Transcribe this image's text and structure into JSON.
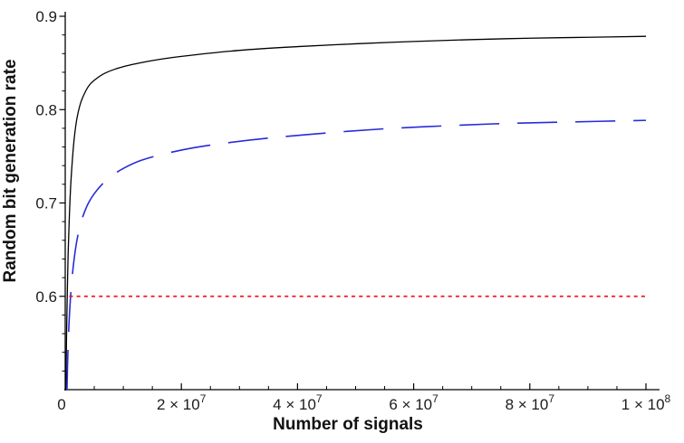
{
  "figure": {
    "background": "#ffffff",
    "origin_label": "0",
    "x_axis": {
      "title": "Number of signals",
      "major_ticks": [
        {
          "value": 20000000,
          "base": "2 × 10",
          "exponent": "7"
        },
        {
          "value": 40000000,
          "base": "4 × 10",
          "exponent": "7"
        },
        {
          "value": 60000000,
          "base": "6 × 10",
          "exponent": "7"
        },
        {
          "value": 80000000,
          "base": "8 × 10",
          "exponent": "7"
        },
        {
          "value": 100000000,
          "base": "1 × 10",
          "exponent": "8"
        }
      ],
      "minor_tick_step": 5000000
    },
    "y_axis": {
      "title": "Random bit generation rate",
      "major_ticks": [
        {
          "value": 0.6,
          "label": "0.6"
        },
        {
          "value": 0.7,
          "label": "0.7"
        },
        {
          "value": 0.8,
          "label": "0.8"
        },
        {
          "value": 0.9,
          "label": "0.9"
        }
      ],
      "minor_tick_step": 0.02
    },
    "axis_color": "#000000"
  },
  "chart_data": {
    "type": "line",
    "title": "",
    "xlabel": "Number of signals",
    "ylabel": "Random bit generation rate",
    "xlim": [
      0,
      100000000
    ],
    "ylim": [
      0.5,
      0.9
    ],
    "grid": false,
    "legend": "none",
    "series": [
      {
        "name": "black-solid-curve",
        "style": "solid",
        "color": "#000000",
        "width": 1.3,
        "points": [
          [
            120000,
            0.5
          ],
          [
            180000,
            0.535
          ],
          [
            260000,
            0.57
          ],
          [
            360000,
            0.605
          ],
          [
            500000,
            0.645
          ],
          [
            650000,
            0.675
          ],
          [
            800000,
            0.7
          ],
          [
            1000000,
            0.725
          ],
          [
            1300000,
            0.752
          ],
          [
            1600000,
            0.772
          ],
          [
            2000000,
            0.79
          ],
          [
            2500000,
            0.804
          ],
          [
            3000000,
            0.813
          ],
          [
            4000000,
            0.825
          ],
          [
            5000000,
            0.8315
          ],
          [
            7000000,
            0.8395
          ],
          [
            10000000,
            0.846
          ],
          [
            15000000,
            0.8525
          ],
          [
            20000000,
            0.857
          ],
          [
            30000000,
            0.8635
          ],
          [
            40000000,
            0.8675
          ],
          [
            50000000,
            0.8705
          ],
          [
            60000000,
            0.873
          ],
          [
            70000000,
            0.875
          ],
          [
            80000000,
            0.8765
          ],
          [
            90000000,
            0.8775
          ],
          [
            100000000,
            0.8785
          ]
        ]
      },
      {
        "name": "blue-long-dashed-curve",
        "style": "dashed",
        "color": "#2a2ad8",
        "width": 1.6,
        "dash": "44 20",
        "points": [
          [
            300000,
            0.5
          ],
          [
            400000,
            0.527
          ],
          [
            550000,
            0.555
          ],
          [
            700000,
            0.577
          ],
          [
            900000,
            0.598
          ],
          [
            1100000,
            0.614
          ],
          [
            1400000,
            0.633
          ],
          [
            1800000,
            0.652
          ],
          [
            2200000,
            0.666
          ],
          [
            2700000,
            0.679
          ],
          [
            3300000,
            0.69
          ],
          [
            4000000,
            0.7
          ],
          [
            5000000,
            0.71
          ],
          [
            6500000,
            0.721
          ],
          [
            8000000,
            0.729
          ],
          [
            10000000,
            0.737
          ],
          [
            13000000,
            0.7455
          ],
          [
            17000000,
            0.7525
          ],
          [
            22000000,
            0.759
          ],
          [
            28000000,
            0.7645
          ],
          [
            35000000,
            0.7695
          ],
          [
            45000000,
            0.775
          ],
          [
            55000000,
            0.7795
          ],
          [
            65000000,
            0.7825
          ],
          [
            75000000,
            0.785
          ],
          [
            85000000,
            0.7865
          ],
          [
            100000000,
            0.7885
          ]
        ]
      },
      {
        "name": "red-dotted-threshold-line",
        "style": "dotted",
        "color": "#ee1a1a",
        "width": 1.8,
        "dash": "4 4.2",
        "points": [
          [
            700000,
            0.6
          ],
          [
            100000000,
            0.6
          ]
        ]
      }
    ]
  }
}
